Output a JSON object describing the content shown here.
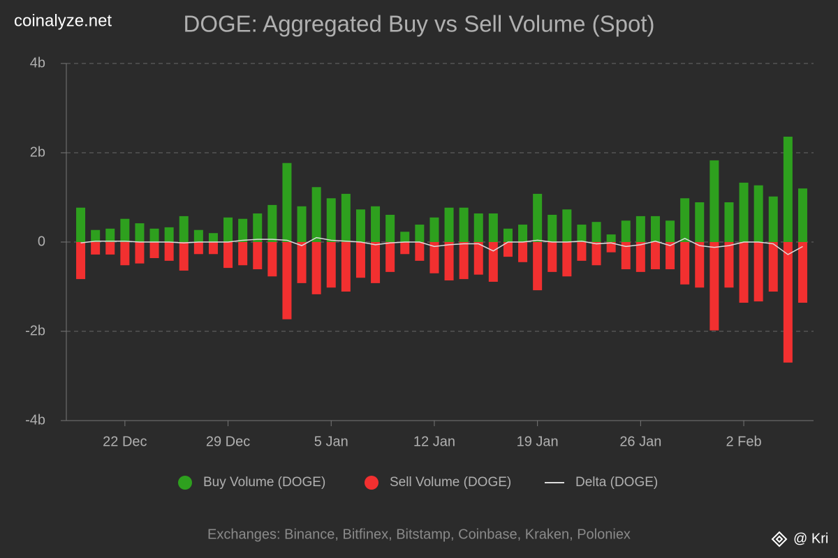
{
  "watermark": "coinalyze.net",
  "footer": "Exchanges: Binance, Bitfinex, Bitstamp, Coinbase, Kraken, Poloniex",
  "credit": "@ Kri",
  "chart_data": {
    "type": "bar",
    "title": "DOGE: Aggregated Buy vs Sell Volume (Spot)",
    "categories": [
      null,
      null,
      null,
      "22 Dec",
      null,
      null,
      null,
      null,
      null,
      null,
      "29 Dec",
      null,
      null,
      null,
      null,
      null,
      null,
      "5 Jan",
      null,
      null,
      null,
      null,
      null,
      null,
      "12 Jan",
      null,
      null,
      null,
      null,
      null,
      null,
      "19 Jan",
      null,
      null,
      null,
      null,
      null,
      null,
      "26 Jan",
      null,
      null,
      null,
      null,
      null,
      null,
      "2 Feb",
      null,
      null,
      null,
      null
    ],
    "series": [
      {
        "name": "Buy Volume (DOGE)",
        "color": "#2ea01e",
        "values": [
          0.77,
          0.27,
          0.3,
          0.52,
          0.42,
          0.3,
          0.33,
          0.58,
          0.27,
          0.2,
          0.55,
          0.52,
          0.64,
          0.83,
          1.77,
          0.8,
          1.23,
          0.98,
          1.08,
          0.73,
          0.8,
          0.61,
          0.23,
          0.39,
          0.55,
          0.77,
          0.77,
          0.64,
          0.64,
          0.3,
          0.39,
          1.08,
          0.61,
          0.73,
          0.39,
          0.45,
          0.17,
          0.48,
          0.58,
          0.58,
          0.48,
          0.98,
          0.89,
          1.83,
          0.89,
          1.33,
          1.27,
          1.02,
          2.36,
          1.2
        ]
      },
      {
        "name": "Sell Volume (DOGE)",
        "color": "#f23030",
        "values": [
          -0.83,
          -0.28,
          -0.28,
          -0.52,
          -0.48,
          -0.36,
          -0.42,
          -0.64,
          -0.27,
          -0.27,
          -0.58,
          -0.52,
          -0.61,
          -0.77,
          -1.73,
          -0.92,
          -1.17,
          -1.02,
          -1.11,
          -0.8,
          -0.92,
          -0.67,
          -0.27,
          -0.42,
          -0.7,
          -0.86,
          -0.83,
          -0.73,
          -0.89,
          -0.33,
          -0.45,
          -1.08,
          -0.67,
          -0.77,
          -0.42,
          -0.52,
          -0.23,
          -0.61,
          -0.67,
          -0.61,
          -0.61,
          -0.95,
          -1.02,
          -1.98,
          -1.02,
          -1.36,
          -1.33,
          -1.11,
          -2.7,
          -1.36
        ]
      },
      {
        "name": "Delta (DOGE)",
        "color": "#dddddd",
        "type": "line",
        "values": [
          -0.02,
          0.02,
          0.02,
          0.02,
          0.0,
          0.0,
          0.0,
          -0.02,
          0.0,
          0.0,
          0.0,
          0.04,
          0.06,
          0.06,
          0.04,
          -0.08,
          0.1,
          0.04,
          0.02,
          0.0,
          -0.06,
          -0.02,
          0.0,
          0.0,
          -0.1,
          -0.06,
          -0.04,
          -0.04,
          -0.2,
          0.0,
          0.0,
          0.04,
          0.0,
          0.0,
          0.02,
          -0.04,
          -0.02,
          -0.1,
          -0.06,
          0.02,
          -0.08,
          0.08,
          -0.08,
          -0.12,
          -0.08,
          0.0,
          0.0,
          -0.04,
          -0.28,
          -0.1
        ]
      }
    ],
    "ylim": [
      -4,
      4
    ],
    "yticks": [
      {
        "value": -4,
        "label": "-4b"
      },
      {
        "value": -2,
        "label": "-2b"
      },
      0,
      {
        "value": 2,
        "label": "2b"
      },
      {
        "value": 4,
        "label": "4b"
      }
    ],
    "grid": true
  }
}
